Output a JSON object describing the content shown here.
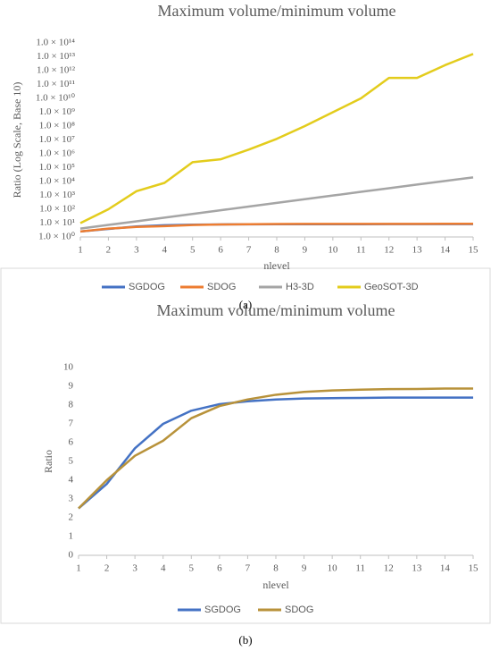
{
  "chart_data": [
    {
      "type": "line",
      "title": "Maximum volume/minimum volume",
      "caption": "(a)",
      "x_label": "nlevel",
      "y_label": "Ratio (Log Scale, Base 10)",
      "log_scale": true,
      "grid": false,
      "legend": "bottom",
      "x": [
        1,
        2,
        3,
        4,
        5,
        6,
        7,
        8,
        9,
        10,
        11,
        12,
        13,
        14,
        15
      ],
      "xlim": [
        1,
        15
      ],
      "xticks": [
        1,
        2,
        3,
        4,
        5,
        6,
        7,
        8,
        9,
        10,
        11,
        12,
        13,
        14,
        15
      ],
      "ylim": [
        1,
        100000000000000
      ],
      "yticks": [
        {
          "value": 1,
          "label": "1.0 × 10⁰"
        },
        {
          "value": 10,
          "label": "1.0 × 10¹"
        },
        {
          "value": 100,
          "label": "1.0 × 10²"
        },
        {
          "value": 1000,
          "label": "1.0 × 10³"
        },
        {
          "value": 10000,
          "label": "1.0 × 10⁴"
        },
        {
          "value": 100000,
          "label": "1.0 × 10⁵"
        },
        {
          "value": 1000000,
          "label": "1.0 × 10⁶"
        },
        {
          "value": 10000000,
          "label": "1.0 × 10⁷"
        },
        {
          "value": 100000000,
          "label": "1.0 × 10⁸"
        },
        {
          "value": 1000000000,
          "label": "1.0 × 10⁹"
        },
        {
          "value": 10000000000,
          "label": "1.0 × 10¹⁰"
        },
        {
          "value": 100000000000,
          "label": "1.0 × 10¹¹"
        },
        {
          "value": 1000000000000,
          "label": "1.0 × 10¹²"
        },
        {
          "value": 10000000000000,
          "label": "1.0 × 10¹³"
        },
        {
          "value": 100000000000000,
          "label": "1.0 × 10¹⁴"
        }
      ],
      "series": [
        {
          "name": "SGDOG",
          "color": "#4472c4",
          "values": [
            2.5,
            3.8,
            5.7,
            7.0,
            7.7,
            8.05,
            8.2,
            8.3,
            8.35,
            8.37,
            8.38,
            8.4,
            8.4,
            8.4,
            8.4
          ]
        },
        {
          "name": "SDOG",
          "color": "#ed7d31",
          "values": [
            2.5,
            4.0,
            5.3,
            6.1,
            7.3,
            7.95,
            8.3,
            8.55,
            8.7,
            8.78,
            8.82,
            8.85,
            8.86,
            8.88,
            8.88
          ]
        },
        {
          "name": "H3-3D",
          "color": "#a5a5a5",
          "values": [
            4,
            7.4,
            13.5,
            25,
            46,
            85,
            156,
            290,
            530,
            975,
            1800,
            3300,
            6100,
            11000,
            20000
          ]
        },
        {
          "name": "GeoSOT-3D",
          "color": "#e3cc1c",
          "values": [
            10,
            100,
            2000,
            8000,
            250000,
            400000,
            2000000,
            12000000,
            100000000,
            1000000000,
            10000000000,
            300000000000,
            300000000000,
            2500000000000,
            16000000000000
          ]
        }
      ]
    },
    {
      "type": "line",
      "title": "Maximum volume/minimum volume",
      "caption": "(b)",
      "x_label": "nlevel",
      "y_label": "Ratio",
      "log_scale": false,
      "grid": false,
      "legend": "bottom",
      "x": [
        1,
        2,
        3,
        4,
        5,
        6,
        7,
        8,
        9,
        10,
        11,
        12,
        13,
        14,
        15
      ],
      "xlim": [
        1,
        15
      ],
      "xticks": [
        1,
        2,
        3,
        4,
        5,
        6,
        7,
        8,
        9,
        10,
        11,
        12,
        13,
        14,
        15
      ],
      "ylim": [
        0,
        10
      ],
      "yticks": [
        0,
        1,
        2,
        3,
        4,
        5,
        6,
        7,
        8,
        9,
        10
      ],
      "series": [
        {
          "name": "SGDOG",
          "color": "#4472c4",
          "values": [
            2.5,
            3.8,
            5.7,
            7.0,
            7.7,
            8.05,
            8.2,
            8.3,
            8.35,
            8.37,
            8.38,
            8.4,
            8.4,
            8.4,
            8.4
          ]
        },
        {
          "name": "SDOG",
          "color": "#b8923a",
          "values": [
            2.5,
            4.0,
            5.3,
            6.1,
            7.3,
            7.95,
            8.3,
            8.55,
            8.7,
            8.78,
            8.82,
            8.85,
            8.86,
            8.88,
            8.88
          ]
        }
      ]
    }
  ]
}
